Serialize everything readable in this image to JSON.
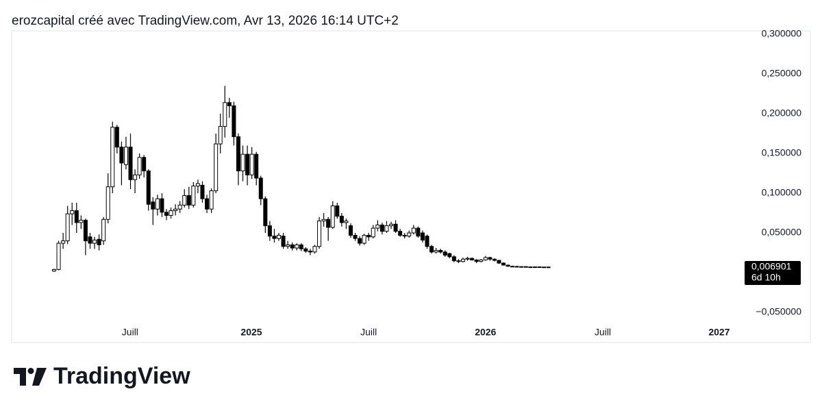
{
  "header": "erozcapital créé avec TradingView.com, Avr 13, 2026 16:14 UTC+2",
  "chart_data": {
    "type": "candlestick",
    "ohlc": [
      [
        0.002,
        0.005,
        0.001,
        0.004
      ],
      [
        0.004,
        0.04,
        0.003,
        0.037
      ],
      [
        0.037,
        0.05,
        0.03,
        0.04
      ],
      [
        0.04,
        0.084,
        0.036,
        0.074
      ],
      [
        0.074,
        0.088,
        0.06,
        0.078
      ],
      [
        0.078,
        0.088,
        0.05,
        0.063
      ],
      [
        0.063,
        0.072,
        0.055,
        0.066
      ],
      [
        0.066,
        0.068,
        0.022,
        0.04
      ],
      [
        0.045,
        0.05,
        0.03,
        0.037
      ],
      [
        0.037,
        0.045,
        0.03,
        0.041
      ],
      [
        0.042,
        0.048,
        0.028,
        0.035
      ],
      [
        0.04,
        0.07,
        0.035,
        0.067
      ],
      [
        0.067,
        0.125,
        0.062,
        0.108
      ],
      [
        0.108,
        0.19,
        0.1,
        0.183
      ],
      [
        0.183,
        0.186,
        0.15,
        0.158
      ],
      [
        0.158,
        0.165,
        0.11,
        0.138
      ],
      [
        0.136,
        0.171,
        0.13,
        0.158
      ],
      [
        0.158,
        0.175,
        0.105,
        0.117
      ],
      [
        0.117,
        0.13,
        0.1,
        0.123
      ],
      [
        0.123,
        0.15,
        0.118,
        0.145
      ],
      [
        0.145,
        0.148,
        0.12,
        0.128
      ],
      [
        0.128,
        0.13,
        0.078,
        0.086
      ],
      [
        0.089,
        0.095,
        0.06,
        0.08
      ],
      [
        0.08,
        0.098,
        0.072,
        0.093
      ],
      [
        0.093,
        0.1,
        0.07,
        0.076
      ],
      [
        0.076,
        0.08,
        0.066,
        0.072
      ],
      [
        0.072,
        0.082,
        0.068,
        0.078
      ],
      [
        0.078,
        0.086,
        0.072,
        0.08
      ],
      [
        0.08,
        0.09,
        0.075,
        0.085
      ],
      [
        0.085,
        0.105,
        0.082,
        0.097
      ],
      [
        0.097,
        0.108,
        0.08,
        0.085
      ],
      [
        0.085,
        0.114,
        0.082,
        0.109
      ],
      [
        0.109,
        0.117,
        0.1,
        0.112
      ],
      [
        0.11,
        0.115,
        0.088,
        0.093
      ],
      [
        0.093,
        0.098,
        0.075,
        0.08
      ],
      [
        0.08,
        0.106,
        0.075,
        0.103
      ],
      [
        0.103,
        0.175,
        0.1,
        0.162
      ],
      [
        0.162,
        0.2,
        0.15,
        0.184
      ],
      [
        0.184,
        0.235,
        0.17,
        0.214
      ],
      [
        0.214,
        0.22,
        0.195,
        0.21
      ],
      [
        0.21,
        0.215,
        0.16,
        0.171
      ],
      [
        0.171,
        0.175,
        0.11,
        0.128
      ],
      [
        0.128,
        0.16,
        0.115,
        0.149
      ],
      [
        0.149,
        0.16,
        0.11,
        0.123
      ],
      [
        0.123,
        0.158,
        0.118,
        0.149
      ],
      [
        0.149,
        0.152,
        0.11,
        0.119
      ],
      [
        0.119,
        0.122,
        0.085,
        0.093
      ],
      [
        0.093,
        0.096,
        0.05,
        0.059
      ],
      [
        0.059,
        0.065,
        0.04,
        0.046
      ],
      [
        0.046,
        0.055,
        0.038,
        0.043
      ],
      [
        0.043,
        0.05,
        0.04,
        0.047
      ],
      [
        0.046,
        0.05,
        0.03,
        0.033
      ],
      [
        0.033,
        0.04,
        0.03,
        0.035
      ],
      [
        0.035,
        0.038,
        0.028,
        0.031
      ],
      [
        0.031,
        0.037,
        0.028,
        0.035
      ],
      [
        0.035,
        0.037,
        0.027,
        0.03
      ],
      [
        0.03,
        0.032,
        0.025,
        0.027
      ],
      [
        0.027,
        0.03,
        0.022,
        0.026
      ],
      [
        0.026,
        0.035,
        0.024,
        0.033
      ],
      [
        0.033,
        0.07,
        0.03,
        0.065
      ],
      [
        0.065,
        0.075,
        0.058,
        0.067
      ],
      [
        0.067,
        0.07,
        0.04,
        0.057
      ],
      [
        0.057,
        0.09,
        0.055,
        0.084
      ],
      [
        0.084,
        0.088,
        0.068,
        0.071
      ],
      [
        0.071,
        0.075,
        0.058,
        0.063
      ],
      [
        0.063,
        0.068,
        0.055,
        0.065
      ],
      [
        0.059,
        0.062,
        0.044,
        0.047
      ],
      [
        0.047,
        0.05,
        0.04,
        0.043
      ],
      [
        0.043,
        0.046,
        0.034,
        0.037
      ],
      [
        0.037,
        0.049,
        0.035,
        0.047
      ],
      [
        0.047,
        0.05,
        0.04,
        0.045
      ],
      [
        0.045,
        0.06,
        0.043,
        0.056
      ],
      [
        0.056,
        0.066,
        0.052,
        0.06
      ],
      [
        0.06,
        0.063,
        0.048,
        0.052
      ],
      [
        0.052,
        0.065,
        0.05,
        0.059
      ],
      [
        0.059,
        0.064,
        0.055,
        0.061
      ],
      [
        0.061,
        0.066,
        0.05,
        0.052
      ],
      [
        0.052,
        0.055,
        0.045,
        0.047
      ],
      [
        0.047,
        0.05,
        0.043,
        0.046
      ],
      [
        0.046,
        0.053,
        0.044,
        0.05
      ],
      [
        0.05,
        0.06,
        0.048,
        0.056
      ],
      [
        0.056,
        0.058,
        0.044,
        0.046
      ],
      [
        0.05,
        0.053,
        0.038,
        0.041
      ],
      [
        0.046,
        0.048,
        0.03,
        0.033
      ],
      [
        0.033,
        0.035,
        0.024,
        0.026
      ],
      [
        0.026,
        0.031,
        0.024,
        0.028
      ],
      [
        0.028,
        0.03,
        0.024,
        0.026
      ],
      [
        0.026,
        0.028,
        0.02,
        0.022
      ],
      [
        0.024,
        0.025,
        0.018,
        0.02
      ],
      [
        0.02,
        0.022,
        0.013,
        0.015
      ],
      [
        0.015,
        0.017,
        0.012,
        0.014
      ],
      [
        0.014,
        0.019,
        0.013,
        0.017
      ],
      [
        0.017,
        0.02,
        0.015,
        0.018
      ],
      [
        0.018,
        0.019,
        0.015,
        0.016
      ],
      [
        0.016,
        0.017,
        0.012,
        0.014
      ],
      [
        0.014,
        0.017,
        0.013,
        0.016
      ],
      [
        0.016,
        0.021,
        0.015,
        0.019
      ],
      [
        0.019,
        0.02,
        0.015,
        0.017
      ],
      [
        0.017,
        0.018,
        0.014,
        0.0155
      ],
      [
        0.0155,
        0.016,
        0.011,
        0.012
      ],
      [
        0.012,
        0.013,
        0.009,
        0.0095
      ],
      [
        0.0095,
        0.01,
        0.0075,
        0.008
      ],
      [
        0.008,
        0.0088,
        0.0072,
        0.0078
      ],
      [
        0.0078,
        0.0085,
        0.007,
        0.0074
      ],
      [
        0.0074,
        0.008,
        0.0068,
        0.0076
      ],
      [
        0.0076,
        0.0082,
        0.007,
        0.0072
      ],
      [
        0.0072,
        0.0079,
        0.0066,
        0.007
      ],
      [
        0.007,
        0.0076,
        0.0065,
        0.0073
      ],
      [
        0.0073,
        0.0078,
        0.0066,
        0.0068
      ],
      [
        0.0068,
        0.0075,
        0.0064,
        0.0071
      ],
      [
        0.0071,
        0.0074,
        0.0066,
        0.006901
      ]
    ],
    "xlim": [
      -9.45,
      153.35
    ],
    "xticks": [
      {
        "value": 16.9,
        "label": "Juill"
      },
      {
        "value": 43.9,
        "label": "2025"
      },
      {
        "value": 70,
        "label": "Juill"
      },
      {
        "value": 96,
        "label": "2026"
      },
      {
        "value": 122.1,
        "label": "Juill"
      },
      {
        "value": 148,
        "label": "2027"
      }
    ],
    "ylim": [
      -0.0879,
      0.3043
    ],
    "yticks": [
      {
        "value": 0.3,
        "label": "0,300000"
      },
      {
        "value": 0.25,
        "label": "0,250000"
      },
      {
        "value": 0.2,
        "label": "0,200000"
      },
      {
        "value": 0.15,
        "label": "0,150000"
      },
      {
        "value": 0.1,
        "label": "0,100000"
      },
      {
        "value": 0.05,
        "label": "0,050000"
      },
      {
        "value": -0.05,
        "label": "−0,050000"
      }
    ],
    "last_price": {
      "value": 0.006901,
      "label": "0,006901"
    },
    "countdown": "6d 10h",
    "grid": false
  },
  "footer": {
    "brand": "TradingView"
  }
}
